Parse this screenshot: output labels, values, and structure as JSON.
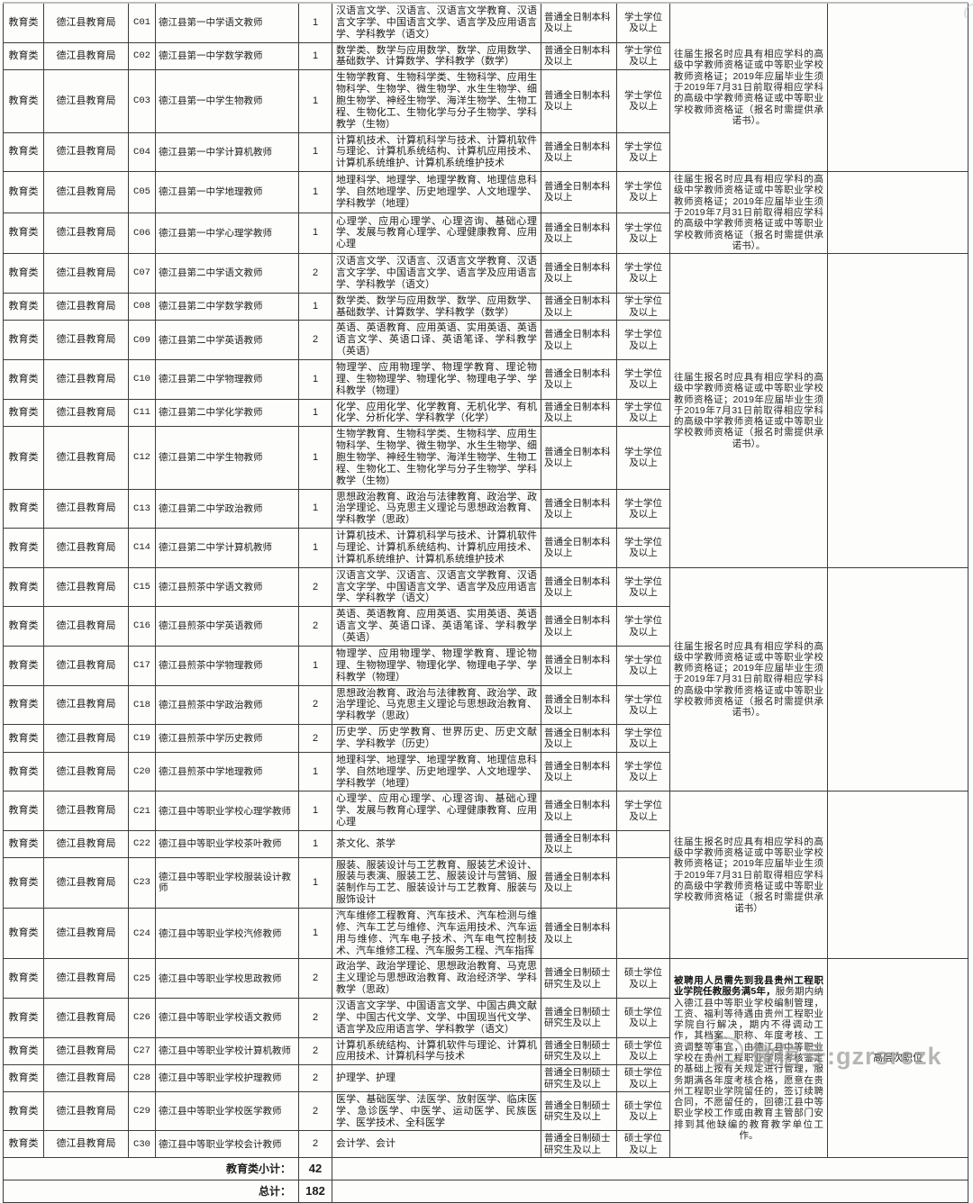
{
  "page": {
    "background": "#fdfdfc",
    "border_color": "#3d3d3d"
  },
  "watermark": {
    "text": "微信号:gzrsrczk",
    "color": "#9b9b9b",
    "icon": "wechat-icon"
  },
  "table": {
    "rows": [
      {
        "category": "教育类",
        "bureau": "德江县教育局",
        "code": "C01",
        "name": "德江县第一中学语文教师",
        "count": "1",
        "majors": "汉语言文学、汉语言、汉语言文学教育、汉语言文字学、中国语言文学、语言学及应用语言学、学科教学（语文）",
        "education": "普通全日制本科及以上",
        "degree": "学士学位及以上"
      },
      {
        "category": "教育类",
        "bureau": "德江县教育局",
        "code": "C02",
        "name": "德江县第一中学数学教师",
        "count": "1",
        "majors": "数学类、数学与应用数学、数学、应用数学、基础数学、计算数学、学科教学（数学）",
        "education": "普通全日制本科及以上",
        "degree": "学士学位及以上"
      },
      {
        "category": "教育类",
        "bureau": "德江县教育局",
        "code": "C03",
        "name": "德江县第一中学生物教师",
        "count": "1",
        "majors": "生物学教育、生物科学类、生物科学、应用生物科学、生物学、微生物学、水生生物学、细胞生物学、神经生物学、海洋生物学、生物工程、生物化工、生物化学与分子生物学、学科教学（生物）",
        "education": "普通全日制本科及以上",
        "degree": "学士学位及以上"
      },
      {
        "category": "教育类",
        "bureau": "德江县教育局",
        "code": "C04",
        "name": "德江县第一中学计算机教师",
        "count": "1",
        "majors": "计算机技术、计算机科学与技术、计算机软件与理论、计算机系统结构、计算机应用技术、计算机系统维护、计算机系统维护技术",
        "education": "普通全日制本科及以上",
        "degree": "学士学位及以上"
      },
      {
        "category": "教育类",
        "bureau": "德江县教育局",
        "code": "C05",
        "name": "德江县第一中学地理教师",
        "count": "1",
        "majors": "地理科学、地理学、地理学教育、地理信息科学、自然地理学、历史地理学、人文地理学、学科教学（地理）",
        "education": "普通全日制本科及以上",
        "degree": "学士学位及以上"
      },
      {
        "category": "教育类",
        "bureau": "德江县教育局",
        "code": "C06",
        "name": "德江县第一中学心理学教师",
        "count": "1",
        "majors": "心理学、应用心理学、心理咨询、基础心理学、发展与教育心理学、心理健康教育、应用心理",
        "education": "普通全日制本科及以上",
        "degree": "学士学位及以上"
      },
      {
        "category": "教育类",
        "bureau": "德江县教育局",
        "code": "C07",
        "name": "德江县第二中学语文教师",
        "count": "2",
        "majors": "汉语言文学、汉语言、汉语言文学教育、汉语言文字学、中国语言文学、语言学及应用语言学、学科教学（语文）",
        "education": "普通全日制本科及以上",
        "degree": "学士学位及以上"
      },
      {
        "category": "教育类",
        "bureau": "德江县教育局",
        "code": "C08",
        "name": "德江县第二中学数学教师",
        "count": "1",
        "majors": "数学类、数学与应用数学、数学、应用数学、基础数学、计算数学、学科教学（数学）",
        "education": "普通全日制本科及以上",
        "degree": "学士学位及以上"
      },
      {
        "category": "教育类",
        "bureau": "德江县教育局",
        "code": "C09",
        "name": "德江县第二中学英语教师",
        "count": "2",
        "majors": "英语、英语教育、应用英语、实用英语、英语语言文学、英语口译、英语笔译、学科教学（英语）",
        "education": "普通全日制本科及以上",
        "degree": "学士学位及以上"
      },
      {
        "category": "教育类",
        "bureau": "德江县教育局",
        "code": "C10",
        "name": "德江县第二中学物理教师",
        "count": "1",
        "majors": "物理学、应用物理学、物理学教育、理论物理、生物物理学、物理化学、物理电子学、学科教学（物理）",
        "education": "普通全日制本科及以上",
        "degree": "学士学位及以上"
      },
      {
        "category": "教育类",
        "bureau": "德江县教育局",
        "code": "C11",
        "name": "德江县第二中学化学教师",
        "count": "1",
        "majors": "化学、应用化学、化学教育、无机化学、有机化学、分析化学、学科教学（化学）",
        "education": "普通全日制本科及以上",
        "degree": "学士学位及以上"
      },
      {
        "category": "教育类",
        "bureau": "德江县教育局",
        "code": "C12",
        "name": "德江县第二中学生物教师",
        "count": "1",
        "majors": "生物学教育、生物科学类、生物科学、应用生物科学、生物学、微生物学、水生生物学、细胞生物学、神经生物学、海洋生物学、生物工程、生物化工、生物化学与分子生物学、学科教学（生物）",
        "education": "普通全日制本科及以上",
        "degree": "学士学位及以上"
      },
      {
        "category": "教育类",
        "bureau": "德江县教育局",
        "code": "C13",
        "name": "德江县第二中学政治教师",
        "count": "1",
        "majors": "思想政治教育、政治与法律教育、政治学、政治学理论、马克思主义理论与思想政治教育、学科教学（思政）",
        "education": "普通全日制本科及以上",
        "degree": "学士学位及以上"
      },
      {
        "category": "教育类",
        "bureau": "德江县教育局",
        "code": "C14",
        "name": "德江县第二中学计算机教师",
        "count": "1",
        "majors": "计算机技术、计算机科学与技术、计算机软件与理论、计算机系统结构、计算机应用技术、计算机系统维护、计算机系统维护技术",
        "education": "普通全日制本科及以上",
        "degree": "学士学位及以上"
      },
      {
        "category": "教育类",
        "bureau": "德江县教育局",
        "code": "C15",
        "name": "德江县煎茶中学语文教师",
        "count": "2",
        "majors": "汉语言文学、汉语言、汉语言文学教育、汉语言文字学、中国语言文学、语言学及应用语言学、学科教学（语文）",
        "education": "普通全日制本科及以上",
        "degree": "学士学位及以上"
      },
      {
        "category": "教育类",
        "bureau": "德江县教育局",
        "code": "C16",
        "name": "德江县煎茶中学英语教师",
        "count": "2",
        "majors": "英语、英语教育、应用英语、实用英语、英语语言文学、英语口译、英语笔译、学科教学（英语）",
        "education": "普通全日制本科及以上",
        "degree": "学士学位及以上"
      },
      {
        "category": "教育类",
        "bureau": "德江县教育局",
        "code": "C17",
        "name": "德江县煎茶中学物理教师",
        "count": "1",
        "majors": "物理学、应用物理学、物理学教育、理论物理、生物物理学、物理化学、物理电子学、学科教学（物理）",
        "education": "普通全日制本科及以上",
        "degree": "学士学位及以上"
      },
      {
        "category": "教育类",
        "bureau": "德江县教育局",
        "code": "C18",
        "name": "德江县煎茶中学政治教师",
        "count": "2",
        "majors": "思想政治教育、政治与法律教育、政治学、政治学理论、马克思主义理论与思想政治教育、学科教学（思政）",
        "education": "普通全日制本科及以上",
        "degree": "学士学位及以上"
      },
      {
        "category": "教育类",
        "bureau": "德江县教育局",
        "code": "C19",
        "name": "德江县煎茶中学历史教师",
        "count": "2",
        "majors": "历史学、历史学教育、世界历史、历史文献学、学科教学（历史）",
        "education": "普通全日制本科及以上",
        "degree": "学士学位及以上"
      },
      {
        "category": "教育类",
        "bureau": "德江县教育局",
        "code": "C20",
        "name": "德江县煎茶中学地理教师",
        "count": "1",
        "majors": "地理科学、地理学、地理学教育、地理信息科学、自然地理学、历史地理学、人文地理学、学科教学（地理）",
        "education": "普通全日制本科及以上",
        "degree": "学士学位及以上"
      },
      {
        "category": "教育类",
        "bureau": "德江县教育局",
        "code": "C21",
        "name": "德江县中等职业学校心理学教师",
        "count": "1",
        "majors": "心理学、应用心理学、心理咨询、基础心理学、发展与教育心理学、心理健康教育、应用心理",
        "education": "普通全日制本科及以上",
        "degree": "学士学位及以上"
      },
      {
        "category": "教育类",
        "bureau": "德江县教育局",
        "code": "C22",
        "name": "德江县中等职业学校茶叶教师",
        "count": "1",
        "majors": "茶文化、茶学",
        "education": "普通全日制本科及以上",
        "degree": ""
      },
      {
        "category": "教育类",
        "bureau": "德江县教育局",
        "code": "C23",
        "name": "德江县中等职业学校服装设计教师",
        "count": "1",
        "majors": "服装、服装设计与工艺教育、服装艺术设计、服装与表演、服装工艺、服装设计与营销、服装制作与工艺、服装设计与工艺教育、服装与服饰设计",
        "education": "普通全日制本科及以上",
        "degree": ""
      },
      {
        "category": "教育类",
        "bureau": "德江县教育局",
        "code": "C24",
        "name": "德江县中等职业学校汽修教师",
        "count": "1",
        "majors": "汽车维修工程教育、汽车技术、汽车检测与维修、汽车工艺与维修、汽车运用技术、汽车运用与维修、汽车电子技术、汽车电气控制技术、汽车维修工程、汽车服务工程、汽车指挥",
        "education": "普通全日制本科及以上",
        "degree": ""
      },
      {
        "category": "教育类",
        "bureau": "德江县教育局",
        "code": "C25",
        "name": "德江县中等职业学校思政教师",
        "count": "2",
        "majors": "政治学、政治学理论、思想政治教育、马克思主义理论与思想政治教育、政治经济学、学科教学（思政）",
        "education": "普通全日制硕士研究生及以上",
        "degree": "硕士学位及以上"
      },
      {
        "category": "教育类",
        "bureau": "德江县教育局",
        "code": "C26",
        "name": "德江县中等职业学校语文教师",
        "count": "2",
        "majors": "汉语言文字学、中国语言文学、中国古典文献学、中国古代文学、文学、中国现当代文学、语言学及应用语言学、学科教学（语文）",
        "education": "普通全日制硕士研究生及以上",
        "degree": "硕士学位及以上"
      },
      {
        "category": "教育类",
        "bureau": "德江县教育局",
        "code": "C27",
        "name": "德江县中等职业学校计算机教师",
        "count": "2",
        "majors": "计算机系统结构、计算机软件与理论、计算机应用技术、计算机科学与技术",
        "education": "普通全日制硕士研究生及以上",
        "degree": "硕士学位及以上"
      },
      {
        "category": "教育类",
        "bureau": "德江县教育局",
        "code": "C28",
        "name": "德江县中等职业学校护理教师",
        "count": "2",
        "majors": "护理学、护理",
        "education": "普通全日制硕士研究生及以上",
        "degree": "硕士学位及以上"
      },
      {
        "category": "教育类",
        "bureau": "德江县教育局",
        "code": "C29",
        "name": "德江县中等职业学校医学教师",
        "count": "2",
        "majors": "医学、基础医学、法医学、放射医学、临床医学、急诊医学、中医学、运动医学、民族医学、医学技术、全科医学",
        "education": "普通全日制硕士研究生及以上",
        "degree": "硕士学位及以上"
      },
      {
        "category": "教育类",
        "bureau": "德江县教育局",
        "code": "C30",
        "name": "德江县中等职业学校会计教师",
        "count": "2",
        "majors": "会计学、会计",
        "education": "普通全日制硕士研究生及以上",
        "degree": "硕士学位及以上"
      }
    ],
    "note_groups": [
      {
        "start": 0,
        "count": 4,
        "note": "往届生报名时应具有相应学科的高级中学教师资格证或中等职业学校教师资格证；2019年应届毕业生须于2019年7月31日前取得相应学科的高级中学教师资格证或中等职业学校教师资格证（报名时需提供承诺书）。",
        "extra": ""
      },
      {
        "start": 4,
        "count": 2,
        "note": "往届生报名时应具有相应学科的高级中学教师资格证或中等职业学校教师资格证；2019年应届毕业生须于2019年7月31日前取得相应学科的高级中学教师资格证或中等职业学校教师资格证（报名时需提供承诺书）。",
        "extra": ""
      },
      {
        "start": 6,
        "count": 8,
        "note": "往届生报名时应具有相应学科的高级中学教师资格证或中等职业学校教师资格证；2019年应届毕业生须于2019年7月31日前取得相应学科的高级中学教师资格证或中等职业学校教师资格证（报名时需提供承诺书）。",
        "extra": ""
      },
      {
        "start": 14,
        "count": 6,
        "note": "往届生报名时应具有相应学科的高级中学教师资格证或中等职业学校教师资格证；2019年应届毕业生须于2019年7月31日前取得相应学科的高级中学教师资格证或中等职业学校教师资格证（报名时需提供承诺书）。",
        "extra": ""
      },
      {
        "start": 20,
        "count": 4,
        "note": "往届生报名时应具有相应学科的高级中学教师资格证或中等职业学校教师资格证；2019年应届毕业生须于2019年7月31日前取得相应学科的高级中学教师资格证或中等职业学校教师资格证（报名时需提供承诺书）",
        "extra": ""
      },
      {
        "start": 24,
        "count": 6,
        "note_bold": "被聘用人员需先到我县贵州工程职业学院任教服务满5年，",
        "note": "服务期内纳入德江县中等职业学校编制管理，工资、福利等待遇由贵州工程职业学院自行解决，期内不得调动工作，其档案、职称、年度考核、工资调整等事宜，由德江县中等职业学校在贵州工程职业学院考核鉴定的基础上按有关规定进行管理，服务期满各年度考核合格，愿意在贵州工程职业学院留任的，签订续聘合同，不愿留任的，回德江县中等职业学校工作或由教育主管部门安排到其他缺编的教育教学单位工作。",
        "extra": "高层次职位"
      }
    ],
    "footer": [
      {
        "label": "教育类小计：",
        "value": "42"
      },
      {
        "label": "总计：",
        "value": "182"
      }
    ]
  }
}
